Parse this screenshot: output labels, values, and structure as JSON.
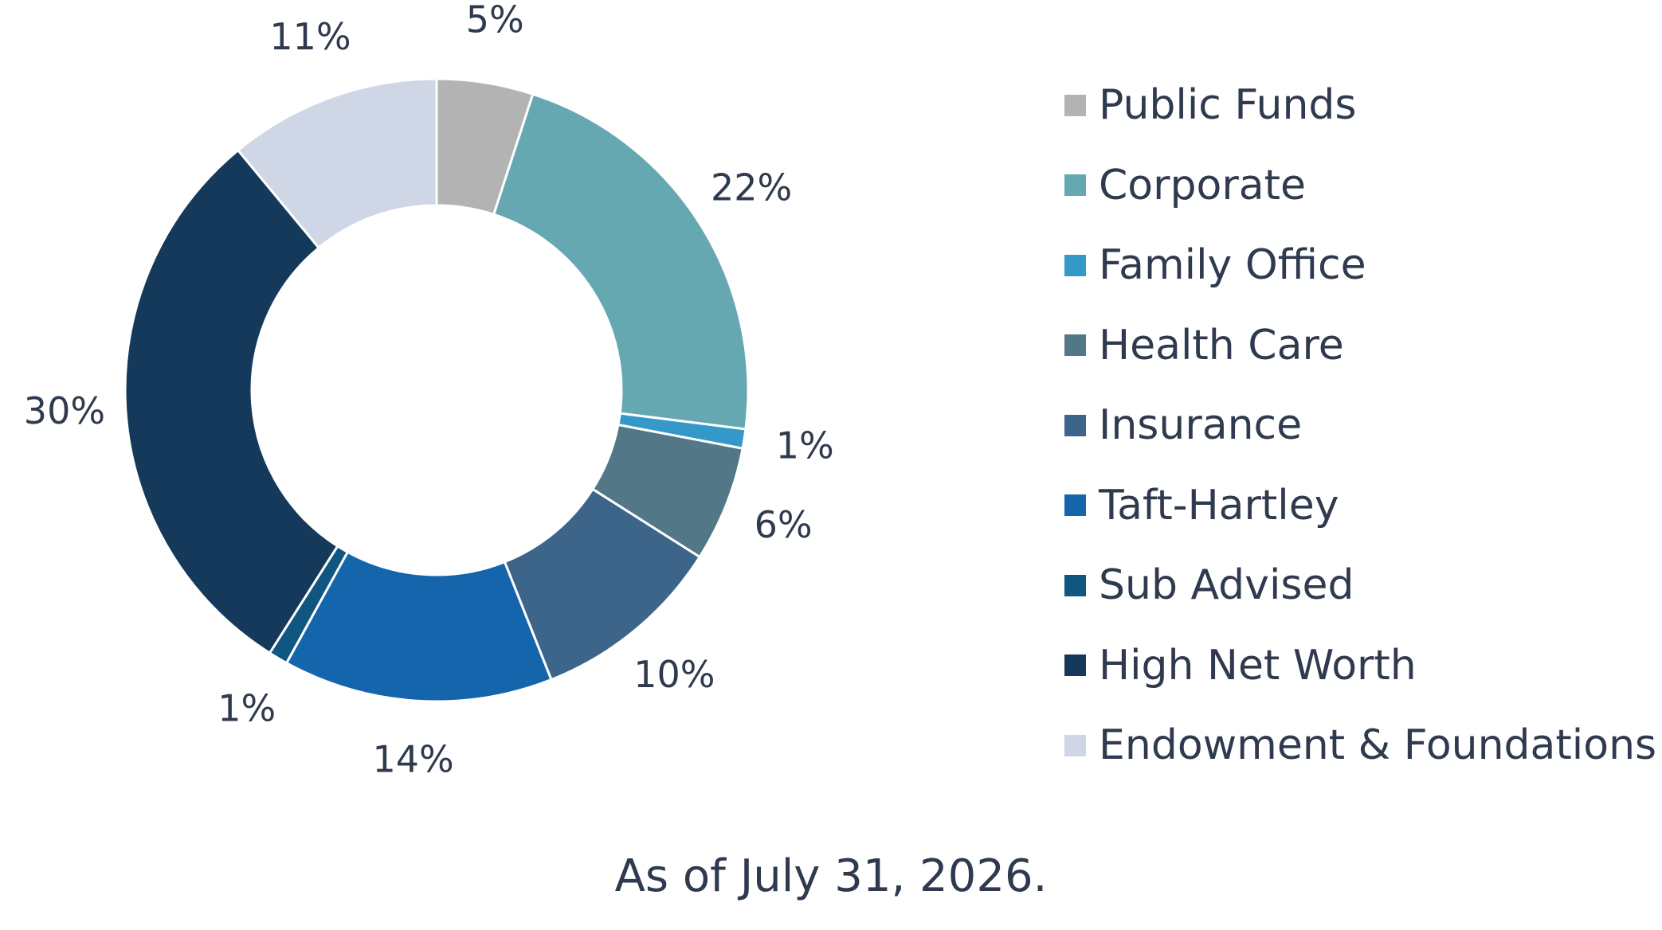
{
  "chart_data": {
    "type": "pie",
    "donut": true,
    "title": "",
    "start_angle_deg": 0,
    "direction": "clockwise",
    "legend_position": "right",
    "slices": [
      {
        "name": "Public Funds",
        "value": 5,
        "label": "5%",
        "color": "#b3b3b3"
      },
      {
        "name": "Corporate",
        "value": 22,
        "label": "22%",
        "color": "#66a8b2"
      },
      {
        "name": "Family Office",
        "value": 1,
        "label": "1%",
        "color": "#3499c9"
      },
      {
        "name": "Health Care",
        "value": 6,
        "label": "6%",
        "color": "#527787"
      },
      {
        "name": "Insurance",
        "value": 10,
        "label": "10%",
        "color": "#3c6589"
      },
      {
        "name": "Taft-Hartley",
        "value": 14,
        "label": "14%",
        "color": "#1565ac"
      },
      {
        "name": "Sub Advised",
        "value": 1,
        "label": "1%",
        "color": "#0f5680"
      },
      {
        "name": "High Net Worth",
        "value": 30,
        "label": "30%",
        "color": "#14395a"
      },
      {
        "name": "Endowment & Foundations",
        "value": 11,
        "label": "11%",
        "color": "#cfd6e6"
      }
    ]
  },
  "footnote": "As of July 31, 2026."
}
